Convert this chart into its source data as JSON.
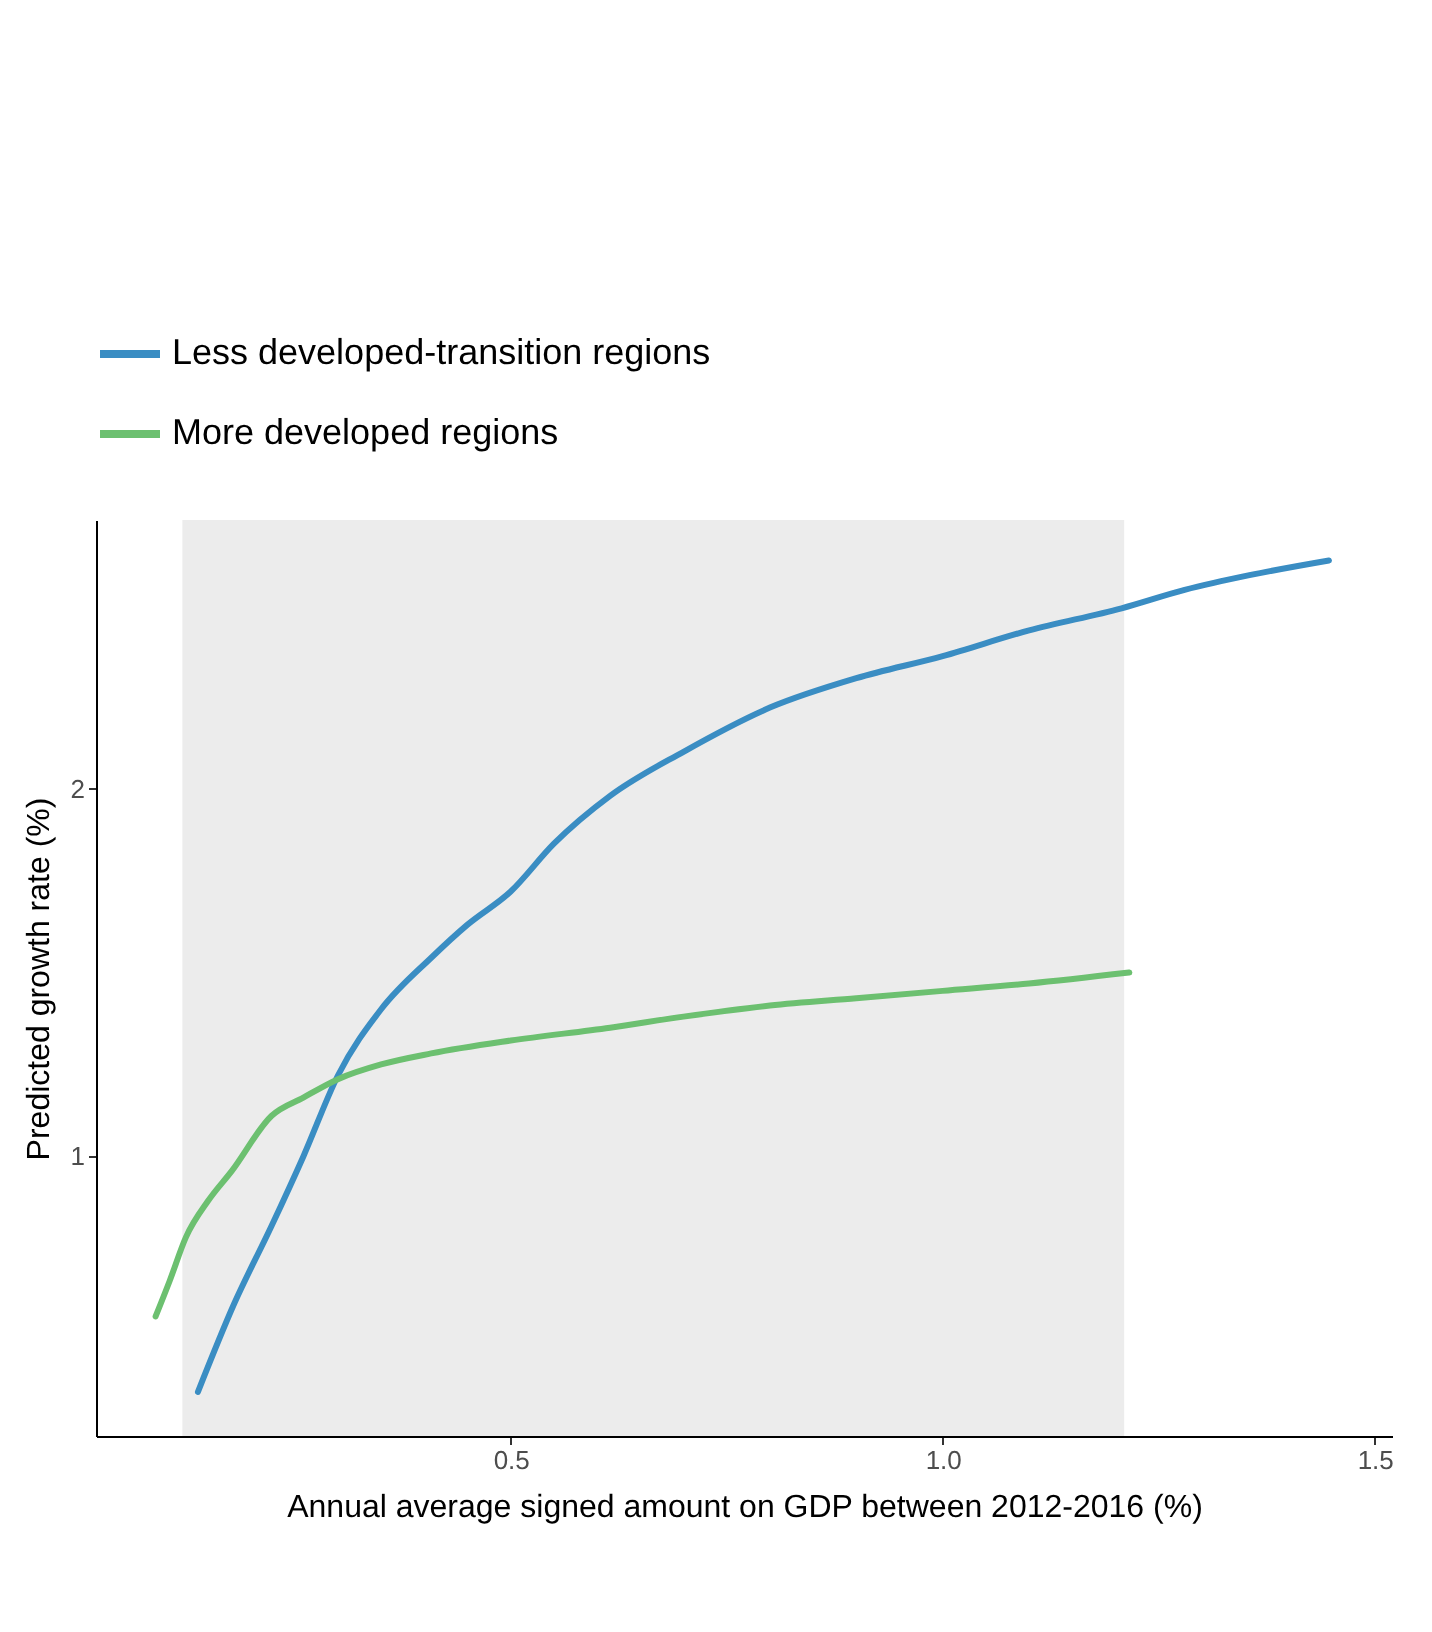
{
  "chart_data": {
    "type": "line",
    "xlabel": "Annual average signed amount on GDP between 2012-2016 (%)",
    "ylabel": "Predicted growth rate (%)",
    "xlim": [
      0.02,
      1.52
    ],
    "ylim": [
      0.24,
      2.73
    ],
    "xticks": [
      0.5,
      {
        "value": 1.0,
        "label": "1.0"
      },
      1.5
    ],
    "yticks": [
      1,
      2
    ],
    "grid": false,
    "legend": "top",
    "marker": "none",
    "line_style": "solid",
    "bands": [
      {
        "axis": "x",
        "from": 0.12,
        "to": 1.21,
        "color": "#e0e0e0"
      }
    ],
    "series": [
      {
        "name": "Less developed-transition regions",
        "color": "#3a8dc3",
        "x": [
          0.138,
          0.18,
          0.223,
          0.26,
          0.3,
          0.35,
          0.408,
          0.45,
          0.5,
          0.55,
          0.615,
          0.7,
          0.8,
          0.9,
          1.0,
          1.1,
          1.207,
          1.28,
          1.355,
          1.447
        ],
        "values": [
          0.36,
          0.6,
          0.81,
          1.0,
          1.22,
          1.4,
          1.54,
          1.63,
          1.72,
          1.85,
          1.98,
          2.1,
          2.22,
          2.3,
          2.36,
          2.43,
          2.49,
          2.54,
          2.58,
          2.62
        ]
      },
      {
        "name": "More developed regions",
        "color": "#6cc070",
        "x": [
          0.089,
          0.105,
          0.124,
          0.15,
          0.177,
          0.223,
          0.26,
          0.3,
          0.35,
          0.408,
          0.5,
          0.615,
          0.7,
          0.8,
          0.9,
          1.0,
          1.1,
          1.216
        ],
        "values": [
          0.565,
          0.66,
          0.78,
          0.88,
          0.96,
          1.11,
          1.16,
          1.21,
          1.25,
          1.28,
          1.315,
          1.35,
          1.38,
          1.41,
          1.43,
          1.45,
          1.47,
          1.5
        ]
      }
    ]
  }
}
